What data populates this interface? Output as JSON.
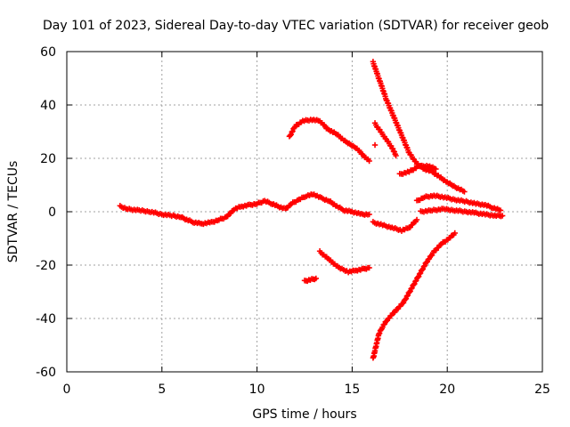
{
  "chart_data": {
    "type": "scatter",
    "title": "Day 101 of 2023, Sidereal Day-to-day VTEC variation (SDTVAR) for receiver geob",
    "xlabel": "GPS time / hours",
    "ylabel": "SDTVAR / TECUs",
    "xlim": [
      0,
      25
    ],
    "ylim": [
      -60,
      60
    ],
    "xticks": [
      0,
      5,
      10,
      15,
      20,
      25
    ],
    "yticks": [
      -60,
      -40,
      -20,
      0,
      20,
      40,
      60
    ],
    "xtick_labels": [
      "0",
      "5",
      "10",
      "15",
      "20",
      "25"
    ],
    "ytick_labels": [
      "-60",
      "-40",
      "-20",
      "0",
      "20",
      "40",
      "60"
    ],
    "grid": true,
    "marker": "+",
    "color": "#ff0000",
    "series": [
      {
        "name": "main-track",
        "points": [
          [
            2.8,
            2
          ],
          [
            3.2,
            1
          ],
          [
            3.8,
            0.5
          ],
          [
            4.4,
            0
          ],
          [
            5.0,
            -1
          ],
          [
            5.6,
            -1.5
          ],
          [
            6.0,
            -2
          ],
          [
            6.3,
            -3
          ],
          [
            6.7,
            -4
          ],
          [
            7.1,
            -4.5
          ],
          [
            7.6,
            -4
          ],
          [
            8.0,
            -3
          ],
          [
            8.4,
            -2
          ],
          [
            8.8,
            1
          ],
          [
            9.2,
            2
          ],
          [
            9.6,
            2.5
          ],
          [
            10.0,
            3
          ],
          [
            10.4,
            4
          ],
          [
            10.8,
            3
          ],
          [
            11.1,
            2
          ],
          [
            11.5,
            1
          ],
          [
            11.8,
            3
          ],
          [
            12.2,
            4.5
          ],
          [
            12.6,
            6
          ],
          [
            13.0,
            6.5
          ],
          [
            13.4,
            5
          ],
          [
            13.8,
            4
          ],
          [
            14.2,
            2
          ],
          [
            14.6,
            0.5
          ],
          [
            15.0,
            0
          ],
          [
            15.5,
            -1
          ],
          [
            15.9,
            -1
          ]
        ]
      },
      {
        "name": "arc-upper-left",
        "points": [
          [
            11.7,
            28
          ],
          [
            12.0,
            32
          ],
          [
            12.4,
            34
          ],
          [
            12.9,
            34.5
          ],
          [
            13.3,
            34
          ],
          [
            13.7,
            31
          ],
          [
            14.2,
            29
          ],
          [
            14.7,
            26
          ],
          [
            15.2,
            24
          ],
          [
            15.6,
            21
          ],
          [
            15.9,
            19
          ]
        ]
      },
      {
        "name": "arc-upper-right",
        "points": [
          [
            16.1,
            56
          ],
          [
            16.3,
            52
          ],
          [
            16.5,
            48
          ],
          [
            16.8,
            42
          ],
          [
            17.1,
            37
          ],
          [
            17.4,
            32
          ],
          [
            17.7,
            27
          ],
          [
            18.0,
            22
          ],
          [
            18.4,
            18
          ],
          [
            18.8,
            16
          ],
          [
            19.2,
            15
          ],
          [
            19.6,
            13
          ],
          [
            20.0,
            11
          ],
          [
            20.5,
            9
          ],
          [
            20.9,
            7.5
          ]
        ]
      },
      {
        "name": "branch-upper-small",
        "points": [
          [
            16.2,
            33
          ],
          [
            16.5,
            30
          ],
          [
            16.8,
            27
          ],
          [
            17.1,
            24
          ],
          [
            17.3,
            21
          ]
        ]
      },
      {
        "name": "dot-upper",
        "points": [
          [
            16.2,
            25
          ]
        ]
      },
      {
        "name": "branch-mid-right",
        "points": [
          [
            17.5,
            14
          ],
          [
            18.0,
            15
          ],
          [
            18.5,
            17
          ],
          [
            19.0,
            17.2
          ],
          [
            19.4,
            16
          ]
        ]
      },
      {
        "name": "arc-mid-right",
        "points": [
          [
            18.4,
            4
          ],
          [
            18.8,
            5.5
          ],
          [
            19.3,
            6
          ],
          [
            19.8,
            5.5
          ],
          [
            20.4,
            4.5
          ],
          [
            21.0,
            3.8
          ],
          [
            21.5,
            3
          ],
          [
            22.0,
            2.5
          ],
          [
            22.4,
            1.5
          ],
          [
            22.8,
            0.5
          ]
        ]
      },
      {
        "name": "arc-zero-right",
        "points": [
          [
            18.6,
            0
          ],
          [
            19.2,
            0.5
          ],
          [
            19.8,
            1
          ],
          [
            20.4,
            0.5
          ],
          [
            21.0,
            0
          ],
          [
            21.5,
            -0.5
          ],
          [
            22.0,
            -1
          ],
          [
            22.5,
            -1.5
          ],
          [
            22.9,
            -1.5
          ]
        ]
      },
      {
        "name": "dip-right",
        "points": [
          [
            16.1,
            -4
          ],
          [
            16.6,
            -5
          ],
          [
            17.1,
            -6
          ],
          [
            17.6,
            -7
          ],
          [
            18.0,
            -6
          ],
          [
            18.4,
            -3
          ]
        ]
      },
      {
        "name": "arc-lower-left",
        "points": [
          [
            12.5,
            -26
          ],
          [
            12.8,
            -25.5
          ],
          [
            13.1,
            -25
          ]
        ]
      },
      {
        "name": "arc-lower-mid",
        "points": [
          [
            13.3,
            -15
          ],
          [
            13.8,
            -18
          ],
          [
            14.3,
            -21
          ],
          [
            14.8,
            -22.5
          ],
          [
            15.2,
            -22
          ],
          [
            15.6,
            -21.5
          ],
          [
            15.9,
            -21
          ]
        ]
      },
      {
        "name": "arc-lower-right",
        "points": [
          [
            16.1,
            -55
          ],
          [
            16.2,
            -52
          ],
          [
            16.4,
            -46
          ],
          [
            16.6,
            -43
          ],
          [
            16.9,
            -40
          ],
          [
            17.3,
            -37
          ],
          [
            17.7,
            -34
          ],
          [
            18.1,
            -29
          ],
          [
            18.5,
            -24
          ],
          [
            18.9,
            -19
          ],
          [
            19.3,
            -15
          ],
          [
            19.7,
            -12
          ],
          [
            20.1,
            -10
          ],
          [
            20.4,
            -8
          ]
        ]
      }
    ]
  }
}
